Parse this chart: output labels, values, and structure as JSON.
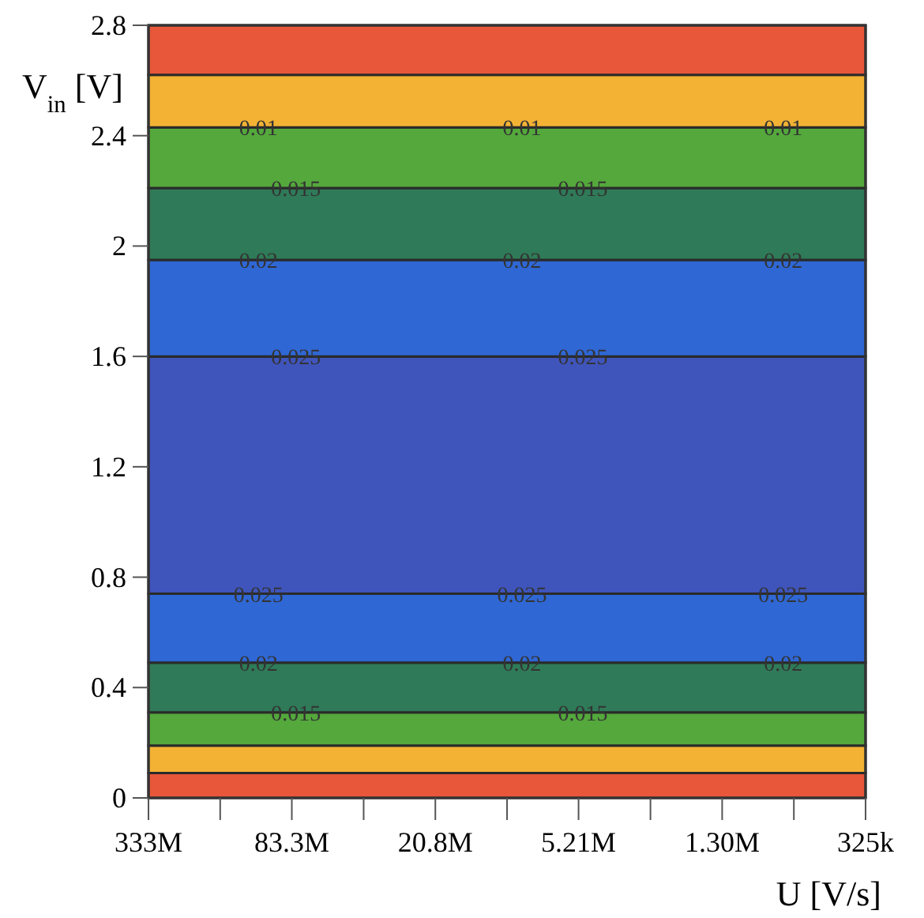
{
  "chart_data": {
    "type": "area",
    "stacked": true,
    "xlabel": "U [V/s]",
    "ylabel": "V$_{in}$ [V]",
    "log": "x",
    "x": [
      333000000,
      325000
    ],
    "xlim": [
      333000000,
      325000
    ],
    "xticks": [
      {
        "value": 333000000,
        "label": "333M"
      },
      {
        "value": 166500000,
        "label": null
      },
      {
        "value": 83300000,
        "label": "83.3M"
      },
      {
        "value": 41600000,
        "label": null
      },
      {
        "value": 20800000,
        "label": "20.8M"
      },
      {
        "value": 10400000,
        "label": null
      },
      {
        "value": 5210000,
        "label": "5.21M"
      },
      {
        "value": 2600000,
        "label": null
      },
      {
        "value": 1300000,
        "label": "1.30M"
      },
      {
        "value": 650000,
        "label": null
      },
      {
        "value": 325000,
        "label": "325k"
      }
    ],
    "ylim": [
      0,
      2.8
    ],
    "yticks": [
      0,
      0.4,
      0.8,
      1.2,
      1.6,
      2,
      2.4,
      2.8
    ],
    "series": [
      {
        "color": "#e8573a",
        "values": [
          0.09,
          0.09
        ]
      },
      {
        "color": "#f3b234",
        "values": [
          0.1,
          0.1
        ]
      },
      {
        "color": "#54a83c",
        "values": [
          0.12,
          0.12
        ]
      },
      {
        "color": "#2f7a58",
        "values": [
          0.18,
          0.18
        ]
      },
      {
        "color": "#2f67d4",
        "values": [
          0.25,
          0.25
        ]
      },
      {
        "color": "#3f55bb",
        "values": [
          0.86,
          0.86
        ]
      },
      {
        "color": "#2f67d4",
        "values": [
          0.35,
          0.35
        ]
      },
      {
        "color": "#2f7a58",
        "values": [
          0.26,
          0.26
        ]
      },
      {
        "color": "#54a83c",
        "values": [
          0.22,
          0.22
        ]
      },
      {
        "color": "#f3b234",
        "values": [
          0.19,
          0.19
        ]
      },
      {
        "color": "#e8573a",
        "values": [
          0.18,
          0.18
        ]
      }
    ],
    "annotations": [
      {
        "text": "0.01",
        "x": 115000000,
        "y": 2.43
      },
      {
        "text": "0.01",
        "x": 9000000,
        "y": 2.43
      },
      {
        "text": "0.01",
        "x": 720000,
        "y": 2.43
      },
      {
        "text": "0.015",
        "x": 80000000,
        "y": 2.21
      },
      {
        "text": "0.015",
        "x": 5000000,
        "y": 2.21
      },
      {
        "text": "0.02",
        "x": 115000000,
        "y": 1.95
      },
      {
        "text": "0.02",
        "x": 9000000,
        "y": 1.95
      },
      {
        "text": "0.02",
        "x": 720000,
        "y": 1.95
      },
      {
        "text": "0.025",
        "x": 80000000,
        "y": 1.6
      },
      {
        "text": "0.025",
        "x": 5000000,
        "y": 1.6
      },
      {
        "text": "0.025",
        "x": 115000000,
        "y": 0.74
      },
      {
        "text": "0.025",
        "x": 9000000,
        "y": 0.74
      },
      {
        "text": "0.025",
        "x": 720000,
        "y": 0.74
      },
      {
        "text": "0.02",
        "x": 115000000,
        "y": 0.49
      },
      {
        "text": "0.02",
        "x": 9000000,
        "y": 0.49
      },
      {
        "text": "0.02",
        "x": 720000,
        "y": 0.49
      },
      {
        "text": "0.015",
        "x": 80000000,
        "y": 0.31
      },
      {
        "text": "0.015",
        "x": 5000000,
        "y": 0.31
      }
    ]
  }
}
